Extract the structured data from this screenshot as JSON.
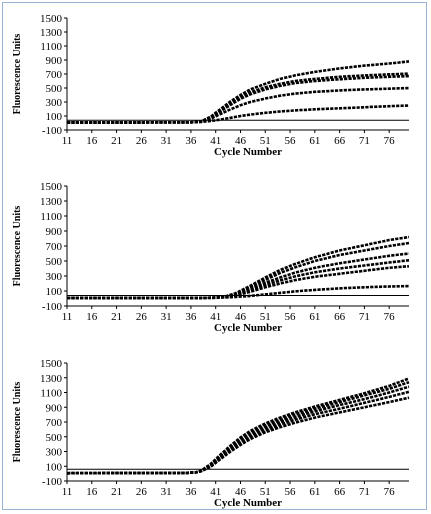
{
  "chart_data": [
    {
      "type": "line",
      "xlabel": "Cycle Number",
      "ylabel": "Fluorescence Units",
      "xticks": [
        11,
        16,
        21,
        26,
        31,
        36,
        41,
        46,
        51,
        56,
        61,
        66,
        71,
        76
      ],
      "yticks": [
        -100,
        100,
        300,
        500,
        700,
        900,
        1100,
        1300,
        1500
      ],
      "xlim": [
        11,
        80
      ],
      "ylim": [
        -100,
        1500
      ],
      "threshold": 40,
      "series": [
        {
          "curve": [
            [
              11,
              8
            ],
            [
              36,
              10
            ],
            [
              38,
              22
            ],
            [
              40,
              90
            ],
            [
              42,
              200
            ],
            [
              44,
              310
            ],
            [
              46,
              400
            ],
            [
              48,
              480
            ],
            [
              51,
              560
            ],
            [
              54,
              630
            ],
            [
              57,
              680
            ],
            [
              61,
              730
            ],
            [
              66,
              780
            ],
            [
              71,
              820
            ],
            [
              76,
              850
            ],
            [
              80,
              880
            ]
          ]
        },
        {
          "curve": [
            [
              11,
              8
            ],
            [
              36,
              10
            ],
            [
              38,
              20
            ],
            [
              40,
              80
            ],
            [
              42,
              180
            ],
            [
              44,
              280
            ],
            [
              46,
              370
            ],
            [
              48,
              440
            ],
            [
              51,
              510
            ],
            [
              54,
              560
            ],
            [
              57,
              600
            ],
            [
              61,
              630
            ],
            [
              66,
              660
            ],
            [
              71,
              680
            ],
            [
              76,
              695
            ],
            [
              80,
              705
            ]
          ]
        },
        {
          "curve": [
            [
              11,
              8
            ],
            [
              36,
              10
            ],
            [
              38,
              20
            ],
            [
              40,
              75
            ],
            [
              42,
              170
            ],
            [
              44,
              260
            ],
            [
              46,
              345
            ],
            [
              48,
              410
            ],
            [
              51,
              480
            ],
            [
              54,
              530
            ],
            [
              57,
              570
            ],
            [
              61,
              600
            ],
            [
              66,
              625
            ],
            [
              71,
              645
            ],
            [
              76,
              660
            ],
            [
              80,
              670
            ]
          ]
        },
        {
          "curve": [
            [
              11,
              8
            ],
            [
              36,
              10
            ],
            [
              38,
              18
            ],
            [
              40,
              60
            ],
            [
              42,
              130
            ],
            [
              44,
              195
            ],
            [
              46,
              255
            ],
            [
              48,
              300
            ],
            [
              51,
              350
            ],
            [
              54,
              390
            ],
            [
              57,
              420
            ],
            [
              61,
              445
            ],
            [
              66,
              465
            ],
            [
              71,
              480
            ],
            [
              76,
              490
            ],
            [
              80,
              500
            ]
          ]
        },
        {
          "curve": [
            [
              11,
              8
            ],
            [
              36,
              10
            ],
            [
              38,
              14
            ],
            [
              40,
              28
            ],
            [
              42,
              50
            ],
            [
              44,
              75
            ],
            [
              46,
              100
            ],
            [
              48,
              120
            ],
            [
              51,
              145
            ],
            [
              54,
              165
            ],
            [
              57,
              180
            ],
            [
              61,
              195
            ],
            [
              66,
              210
            ],
            [
              71,
              225
            ],
            [
              76,
              240
            ],
            [
              80,
              250
            ]
          ]
        }
      ]
    },
    {
      "type": "line",
      "xlabel": "Cycle Number",
      "ylabel": "Fluorescence Units",
      "xticks": [
        11,
        16,
        21,
        26,
        31,
        36,
        41,
        46,
        51,
        56,
        61,
        66,
        71,
        76
      ],
      "yticks": [
        -100,
        100,
        300,
        500,
        700,
        900,
        1100,
        1300,
        1500
      ],
      "xlim": [
        11,
        80
      ],
      "ylim": [
        -100,
        1500
      ],
      "threshold": 40,
      "series": [
        {
          "curve": [
            [
              11,
              8
            ],
            [
              38,
              8
            ],
            [
              41,
              12
            ],
            [
              43,
              30
            ],
            [
              45,
              70
            ],
            [
              48,
              170
            ],
            [
              51,
              280
            ],
            [
              54,
              380
            ],
            [
              57,
              460
            ],
            [
              61,
              550
            ],
            [
              66,
              640
            ],
            [
              71,
              710
            ],
            [
              76,
              780
            ],
            [
              80,
              820
            ]
          ]
        },
        {
          "curve": [
            [
              11,
              8
            ],
            [
              38,
              8
            ],
            [
              41,
              12
            ],
            [
              43,
              28
            ],
            [
              45,
              65
            ],
            [
              48,
              155
            ],
            [
              51,
              250
            ],
            [
              54,
              340
            ],
            [
              57,
              415
            ],
            [
              61,
              500
            ],
            [
              66,
              580
            ],
            [
              71,
              640
            ],
            [
              76,
              700
            ],
            [
              80,
              740
            ]
          ]
        },
        {
          "curve": [
            [
              11,
              8
            ],
            [
              38,
              8
            ],
            [
              41,
              12
            ],
            [
              43,
              25
            ],
            [
              45,
              55
            ],
            [
              48,
              130
            ],
            [
              51,
              210
            ],
            [
              54,
              280
            ],
            [
              57,
              345
            ],
            [
              61,
              410
            ],
            [
              66,
              470
            ],
            [
              71,
              520
            ],
            [
              76,
              570
            ],
            [
              80,
              600
            ]
          ]
        },
        {
          "curve": [
            [
              11,
              8
            ],
            [
              38,
              8
            ],
            [
              41,
              11
            ],
            [
              43,
              22
            ],
            [
              45,
              48
            ],
            [
              48,
              110
            ],
            [
              51,
              180
            ],
            [
              54,
              240
            ],
            [
              57,
              295
            ],
            [
              61,
              350
            ],
            [
              66,
              400
            ],
            [
              71,
              440
            ],
            [
              76,
              480
            ],
            [
              80,
              510
            ]
          ]
        },
        {
          "curve": [
            [
              11,
              8
            ],
            [
              38,
              8
            ],
            [
              41,
              11
            ],
            [
              43,
              20
            ],
            [
              45,
              40
            ],
            [
              48,
              90
            ],
            [
              51,
              150
            ],
            [
              54,
              200
            ],
            [
              57,
              245
            ],
            [
              61,
              290
            ],
            [
              66,
              330
            ],
            [
              71,
              370
            ],
            [
              76,
              410
            ],
            [
              80,
              430
            ]
          ]
        },
        {
          "curve": [
            [
              11,
              8
            ],
            [
              38,
              8
            ],
            [
              41,
              10
            ],
            [
              43,
              14
            ],
            [
              45,
              20
            ],
            [
              48,
              35
            ],
            [
              51,
              55
            ],
            [
              54,
              75
            ],
            [
              57,
              95
            ],
            [
              61,
              115
            ],
            [
              66,
              135
            ],
            [
              71,
              150
            ],
            [
              76,
              160
            ],
            [
              80,
              165
            ]
          ]
        }
      ]
    },
    {
      "type": "line",
      "xlabel": "Cycle Number",
      "ylabel": "Fluorescence Units",
      "xticks": [
        11,
        16,
        21,
        26,
        31,
        36,
        41,
        46,
        51,
        56,
        61,
        66,
        71,
        76
      ],
      "yticks": [
        -100,
        100,
        300,
        500,
        700,
        900,
        1100,
        1300,
        1500
      ],
      "xlim": [
        11,
        80
      ],
      "ylim": [
        -100,
        1500
      ],
      "threshold": 60,
      "series": [
        {
          "curve": [
            [
              11,
              5
            ],
            [
              35,
              10
            ],
            [
              37,
              18
            ],
            [
              38,
              40
            ],
            [
              40,
              130
            ],
            [
              42,
              260
            ],
            [
              44,
              380
            ],
            [
              46,
              490
            ],
            [
              48,
              580
            ],
            [
              51,
              680
            ],
            [
              54,
              760
            ],
            [
              57,
              830
            ],
            [
              61,
              910
            ],
            [
              66,
              1000
            ],
            [
              71,
              1090
            ],
            [
              76,
              1190
            ],
            [
              80,
              1290
            ]
          ]
        },
        {
          "curve": [
            [
              11,
              5
            ],
            [
              35,
              10
            ],
            [
              37,
              18
            ],
            [
              38,
              38
            ],
            [
              40,
              120
            ],
            [
              42,
              245
            ],
            [
              44,
              360
            ],
            [
              46,
              465
            ],
            [
              48,
              550
            ],
            [
              51,
              650
            ],
            [
              54,
              730
            ],
            [
              57,
              800
            ],
            [
              61,
              880
            ],
            [
              66,
              970
            ],
            [
              71,
              1060
            ],
            [
              76,
              1150
            ],
            [
              80,
              1240
            ]
          ]
        },
        {
          "curve": [
            [
              11,
              5
            ],
            [
              35,
              10
            ],
            [
              37,
              17
            ],
            [
              38,
              35
            ],
            [
              40,
              110
            ],
            [
              42,
              230
            ],
            [
              44,
              340
            ],
            [
              46,
              440
            ],
            [
              48,
              525
            ],
            [
              51,
              620
            ],
            [
              54,
              700
            ],
            [
              57,
              765
            ],
            [
              61,
              845
            ],
            [
              66,
              930
            ],
            [
              71,
              1010
            ],
            [
              76,
              1100
            ],
            [
              80,
              1180
            ]
          ]
        },
        {
          "curve": [
            [
              11,
              5
            ],
            [
              35,
              10
            ],
            [
              37,
              16
            ],
            [
              38,
              32
            ],
            [
              40,
              100
            ],
            [
              42,
              215
            ],
            [
              44,
              320
            ],
            [
              46,
              415
            ],
            [
              48,
              495
            ],
            [
              51,
              590
            ],
            [
              54,
              665
            ],
            [
              57,
              730
            ],
            [
              61,
              805
            ],
            [
              66,
              880
            ],
            [
              71,
              960
            ],
            [
              76,
              1040
            ],
            [
              80,
              1110
            ]
          ]
        },
        {
          "curve": [
            [
              11,
              5
            ],
            [
              35,
              10
            ],
            [
              37,
              15
            ],
            [
              38,
              30
            ],
            [
              40,
              92
            ],
            [
              42,
              200
            ],
            [
              44,
              300
            ],
            [
              46,
              390
            ],
            [
              48,
              470
            ],
            [
              51,
              560
            ],
            [
              54,
              630
            ],
            [
              57,
              690
            ],
            [
              61,
              760
            ],
            [
              66,
              830
            ],
            [
              71,
              900
            ],
            [
              76,
              970
            ],
            [
              80,
              1030
            ]
          ]
        }
      ]
    }
  ]
}
